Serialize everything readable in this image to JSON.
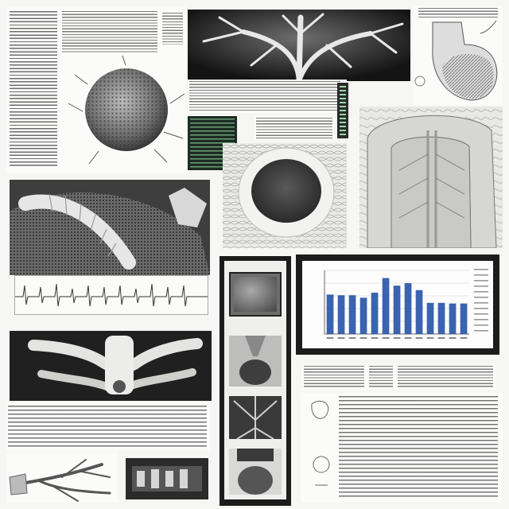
{
  "page": {
    "background": "#f6f6f4",
    "accent": "#3a63b0",
    "panels": [
      "text-column-top-left",
      "spore-illustration",
      "branching-specimen-photo",
      "bulb-sketch",
      "caption-table",
      "color-thumbnail",
      "cell-ring-photo",
      "folded-tissue-photo",
      "ribbed-specimen-photo",
      "bone-specimen-photo",
      "text-block-bottom-left",
      "root-sketch",
      "small-dark-photo",
      "thumbnail-column",
      "bar-chart-panel",
      "text-block-bottom-right"
    ]
  },
  "chart_data": {
    "type": "bar",
    "title": "",
    "xlabel": "",
    "ylabel": "",
    "categories": [
      "",
      "",
      "",
      "",
      "",
      "",
      "",
      "",
      "",
      "",
      "",
      "",
      ""
    ],
    "values": [
      0.62,
      0.61,
      0.61,
      0.57,
      0.65,
      0.88,
      0.76,
      0.8,
      0.69,
      0.49,
      0.49,
      0.48,
      0.48
    ],
    "ylim": [
      0,
      1
    ],
    "grid": true,
    "bar_color": "#3a63b0"
  }
}
